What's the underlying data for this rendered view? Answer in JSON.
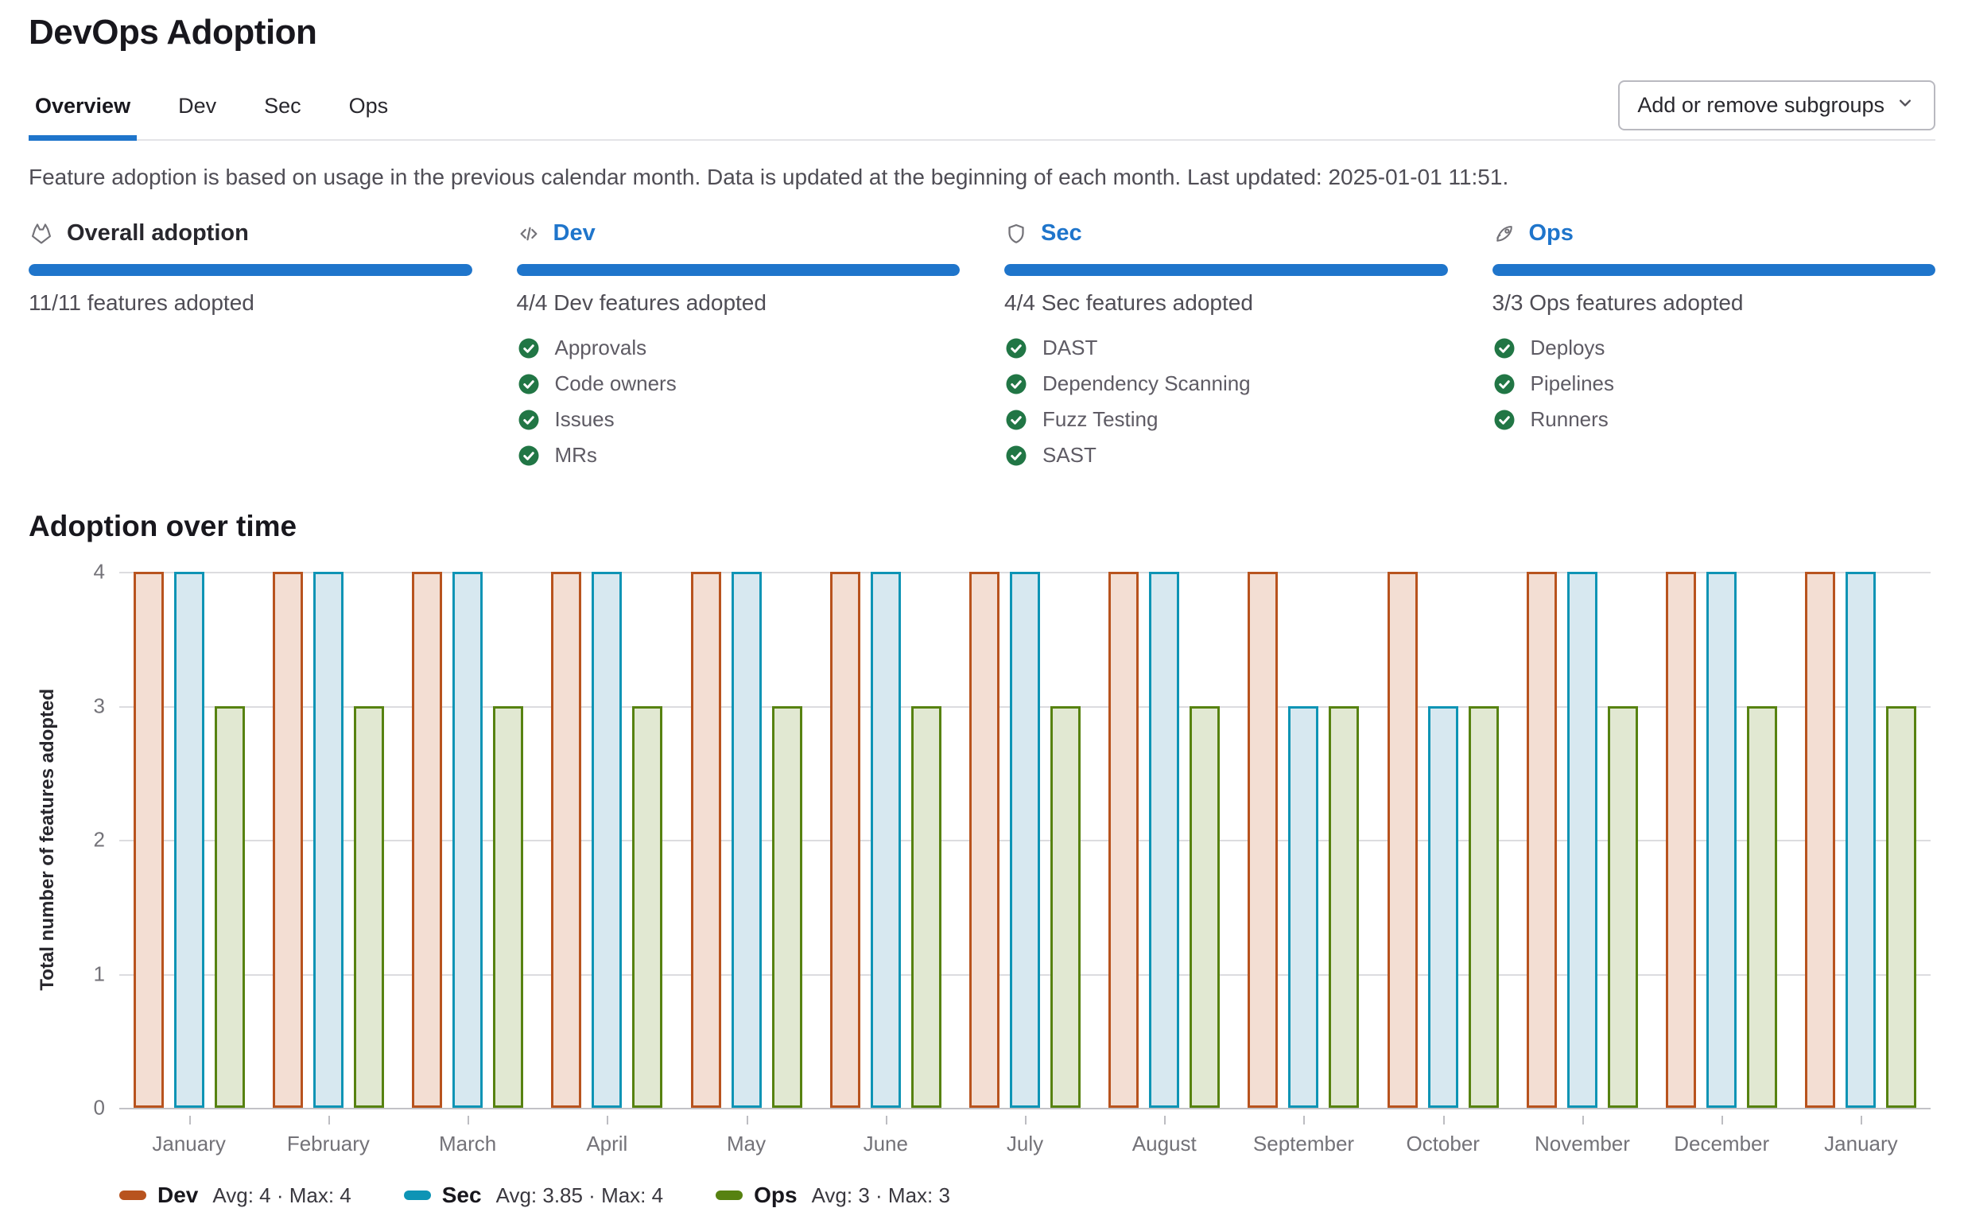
{
  "page": {
    "title": "DevOps Adoption",
    "tabs": [
      {
        "label": "Overview",
        "active": true
      },
      {
        "label": "Dev",
        "active": false
      },
      {
        "label": "Sec",
        "active": false
      },
      {
        "label": "Ops",
        "active": false
      }
    ],
    "subgroups_button": {
      "label": "Add or remove subgroups",
      "icon": "chevron-down-icon"
    },
    "description": "Feature adoption is based on usage in the previous calendar month. Data is updated at the beginning of each month. Last updated: 2025-01-01 11:51."
  },
  "cards": [
    {
      "icon": "tanuki-icon",
      "title": "Overall adoption",
      "link": false,
      "progress_percent": 100,
      "subtitle": "11/11 features adopted",
      "features": []
    },
    {
      "icon": "code-icon",
      "title": "Dev",
      "link": true,
      "progress_percent": 100,
      "subtitle": "4/4 Dev features adopted",
      "features": [
        "Approvals",
        "Code owners",
        "Issues",
        "MRs"
      ]
    },
    {
      "icon": "shield-icon",
      "title": "Sec",
      "link": true,
      "progress_percent": 100,
      "subtitle": "4/4 Sec features adopted",
      "features": [
        "DAST",
        "Dependency Scanning",
        "Fuzz Testing",
        "SAST"
      ]
    },
    {
      "icon": "rocket-icon",
      "title": "Ops",
      "link": true,
      "progress_percent": 100,
      "subtitle": "3/3 Ops features adopted",
      "features": [
        "Deploys",
        "Pipelines",
        "Runners"
      ]
    }
  ],
  "section": {
    "title": "Adoption over time"
  },
  "chart_data": {
    "type": "bar",
    "title": "Adoption over time",
    "xlabel": "",
    "ylabel": "Total number of features adopted",
    "ylim": [
      0,
      4
    ],
    "yticks": [
      0,
      1,
      2,
      3,
      4
    ],
    "grid": true,
    "legend_position": "bottom",
    "categories": [
      "January",
      "February",
      "March",
      "April",
      "May",
      "June",
      "July",
      "August",
      "September",
      "October",
      "November",
      "December",
      "January"
    ],
    "series": [
      {
        "name": "Dev",
        "stroke": "#b8531e",
        "fill": "#f3ded3",
        "values": [
          4,
          4,
          4,
          4,
          4,
          4,
          4,
          4,
          4,
          4,
          4,
          4,
          4
        ],
        "stats": "Avg: 4 · Max: 4"
      },
      {
        "name": "Sec",
        "stroke": "#0e94b5",
        "fill": "#d7e8f0",
        "values": [
          4,
          4,
          4,
          4,
          4,
          4,
          4,
          4,
          3,
          3,
          4,
          4,
          4
        ],
        "stats": "Avg: 3.85 · Max: 4"
      },
      {
        "name": "Ops",
        "stroke": "#578211",
        "fill": "#e1e8d2",
        "values": [
          3,
          3,
          3,
          3,
          3,
          3,
          3,
          3,
          3,
          3,
          3,
          3,
          3
        ],
        "stats": "Avg: 3 · Max: 3"
      }
    ]
  },
  "colors": {
    "accent_blue": "#1f75cb",
    "check_green": "#217645",
    "dev_stroke": "#b8531e",
    "sec_stroke": "#0e94b5",
    "ops_stroke": "#578211"
  }
}
